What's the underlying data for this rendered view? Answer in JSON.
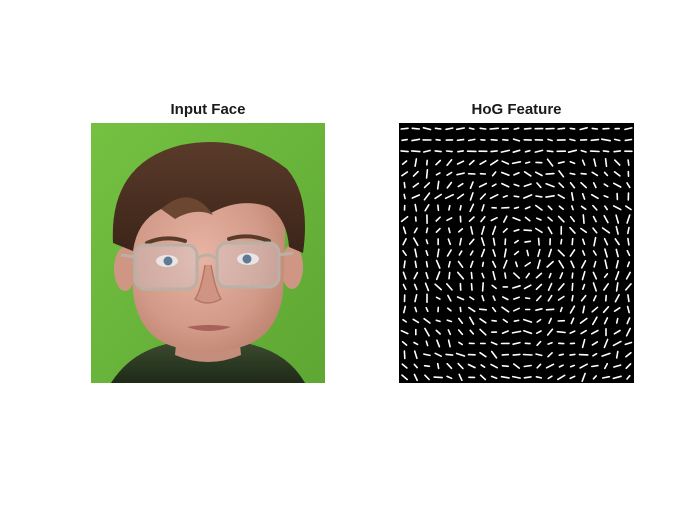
{
  "figure": {
    "left_title": "Input Face",
    "right_title": "HoG Feature"
  },
  "panels": {
    "left": {
      "content": "color photograph of a face",
      "background_color": "#6dbb3c"
    },
    "right": {
      "content": "HoG feature visualization",
      "background_color": "#000000",
      "stroke_color": "#ffffff",
      "grid_cols": 21,
      "grid_rows": 23
    }
  }
}
